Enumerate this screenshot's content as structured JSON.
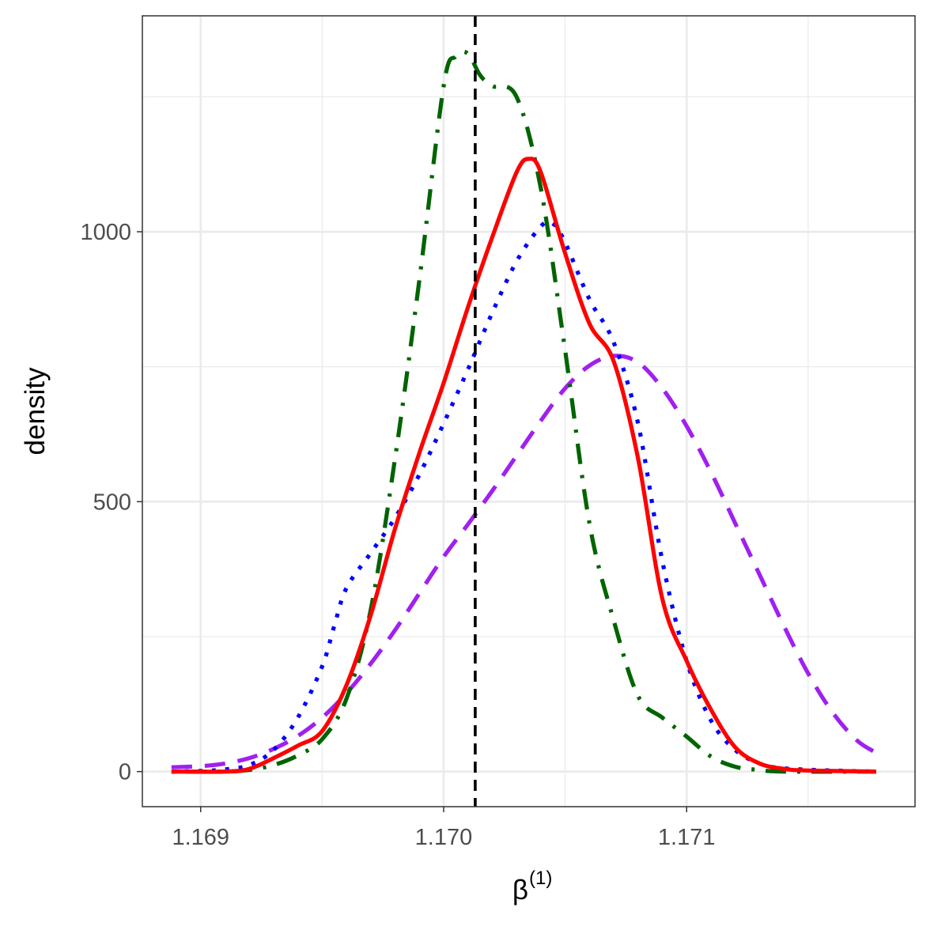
{
  "chart_data": {
    "type": "line",
    "title": "",
    "xlabel": "β",
    "xlabel_superscript": "(1)",
    "ylabel": "density",
    "xlim": [
      1.16876,
      1.17194
    ],
    "ylim": [
      -65,
      1400
    ],
    "x_ticks": [
      1.169,
      1.17,
      1.171
    ],
    "x_tick_labels": [
      "1.169",
      "1.170",
      "1.171"
    ],
    "y_ticks": [
      0,
      500,
      1000
    ],
    "y_tick_labels": [
      "0",
      "500",
      "1000"
    ],
    "grid": true,
    "legend": "none",
    "reference_line": {
      "x": 1.17013,
      "style": "dashed",
      "color": "#000000"
    },
    "series": [
      {
        "style": "dashed",
        "color": "#a020f0",
        "points": [
          [
            1.16888,
            8
          ],
          [
            1.169,
            10
          ],
          [
            1.1691,
            15
          ],
          [
            1.1692,
            25
          ],
          [
            1.1693,
            42
          ],
          [
            1.1694,
            66
          ],
          [
            1.1695,
            100
          ],
          [
            1.1696,
            145
          ],
          [
            1.1697,
            200
          ],
          [
            1.1698,
            262
          ],
          [
            1.1699,
            330
          ],
          [
            1.17,
            398
          ],
          [
            1.1701,
            458
          ],
          [
            1.1702,
            520
          ],
          [
            1.1703,
            585
          ],
          [
            1.1704,
            650
          ],
          [
            1.1705,
            710
          ],
          [
            1.1706,
            752
          ],
          [
            1.1707,
            770
          ],
          [
            1.1708,
            758
          ],
          [
            1.1709,
            710
          ],
          [
            1.171,
            640
          ],
          [
            1.1711,
            555
          ],
          [
            1.1712,
            460
          ],
          [
            1.1713,
            365
          ],
          [
            1.1714,
            270
          ],
          [
            1.1715,
            182
          ],
          [
            1.1716,
            110
          ],
          [
            1.1717,
            58
          ],
          [
            1.17178,
            35
          ]
        ]
      },
      {
        "style": "dotted",
        "color": "#0000ff",
        "points": [
          [
            1.16888,
            0
          ],
          [
            1.169,
            1
          ],
          [
            1.1691,
            4
          ],
          [
            1.1692,
            12
          ],
          [
            1.1693,
            40
          ],
          [
            1.1694,
            100
          ],
          [
            1.1695,
            195
          ],
          [
            1.16955,
            270
          ],
          [
            1.1696,
            340
          ],
          [
            1.1697,
            405
          ],
          [
            1.1698,
            470
          ],
          [
            1.1699,
            550
          ],
          [
            1.17,
            645
          ],
          [
            1.1701,
            745
          ],
          [
            1.1702,
            850
          ],
          [
            1.1703,
            945
          ],
          [
            1.1704,
            1010
          ],
          [
            1.17045,
            1015
          ],
          [
            1.1705,
            980
          ],
          [
            1.1706,
            875
          ],
          [
            1.1707,
            795
          ],
          [
            1.1708,
            645
          ],
          [
            1.1709,
            390
          ],
          [
            1.171,
            205
          ],
          [
            1.1711,
            95
          ],
          [
            1.1712,
            40
          ],
          [
            1.1713,
            15
          ],
          [
            1.1714,
            6
          ],
          [
            1.1716,
            2
          ],
          [
            1.17178,
            0
          ]
        ]
      },
      {
        "style": "dotdash",
        "color": "#006400",
        "points": [
          [
            1.16888,
            0
          ],
          [
            1.1691,
            0
          ],
          [
            1.1692,
            3
          ],
          [
            1.1693,
            12
          ],
          [
            1.1694,
            30
          ],
          [
            1.1695,
            60
          ],
          [
            1.1696,
            135
          ],
          [
            1.1697,
            300
          ],
          [
            1.1698,
            580
          ],
          [
            1.1699,
            910
          ],
          [
            1.17,
            1270
          ],
          [
            1.17005,
            1325
          ],
          [
            1.1701,
            1330
          ],
          [
            1.17015,
            1290
          ],
          [
            1.1702,
            1270
          ],
          [
            1.1703,
            1250
          ],
          [
            1.1704,
            1080
          ],
          [
            1.1705,
            780
          ],
          [
            1.1706,
            460
          ],
          [
            1.1707,
            280
          ],
          [
            1.1708,
            140
          ],
          [
            1.1709,
            100
          ],
          [
            1.171,
            65
          ],
          [
            1.1711,
            28
          ],
          [
            1.1712,
            9
          ],
          [
            1.1713,
            3
          ],
          [
            1.1714,
            0
          ],
          [
            1.17178,
            0
          ]
        ]
      },
      {
        "style": "solid",
        "color": "#ff0000",
        "points": [
          [
            1.16888,
            0
          ],
          [
            1.1691,
            0
          ],
          [
            1.1692,
            5
          ],
          [
            1.1693,
            25
          ],
          [
            1.1694,
            48
          ],
          [
            1.1695,
            75
          ],
          [
            1.1696,
            160
          ],
          [
            1.1697,
            290
          ],
          [
            1.1698,
            450
          ],
          [
            1.1699,
            590
          ],
          [
            1.17,
            720
          ],
          [
            1.1701,
            860
          ],
          [
            1.1702,
            990
          ],
          [
            1.1703,
            1110
          ],
          [
            1.17035,
            1135
          ],
          [
            1.1704,
            1110
          ],
          [
            1.1705,
            960
          ],
          [
            1.1706,
            830
          ],
          [
            1.1707,
            760
          ],
          [
            1.1708,
            580
          ],
          [
            1.1709,
            320
          ],
          [
            1.171,
            205
          ],
          [
            1.1711,
            115
          ],
          [
            1.1712,
            45
          ],
          [
            1.1713,
            15
          ],
          [
            1.1714,
            5
          ],
          [
            1.1715,
            2
          ],
          [
            1.17178,
            0
          ]
        ]
      }
    ]
  }
}
